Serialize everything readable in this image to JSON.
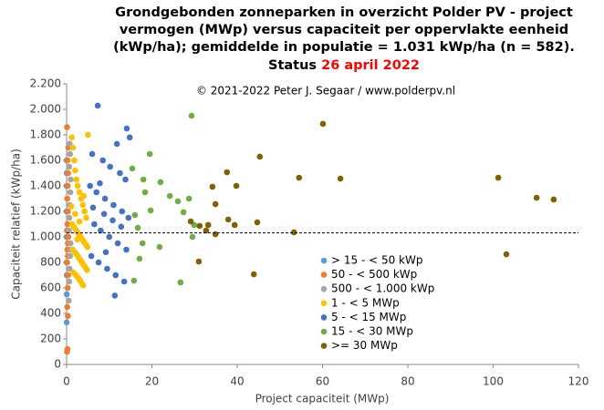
{
  "chart_data": {
    "type": "scatter",
    "title_lines": [
      "Grondgebonden zonneparken in overzicht Polder PV - project",
      "vermogen (MWp) versus capaciteit per oppervlakte eenheid",
      "(kWp/ha); gemiddelde in populatie = 1.031 kWp/ha (n = 582).",
      "Status"
    ],
    "title_date": "26 april 2022",
    "title_date_color": "#ff0000",
    "subtitle": "© 2021-2022 Peter J. Segaar / www.polderpv.nl",
    "xlabel": "Project capaciteit (MWp)",
    "ylabel": "Capaciteit relatief (kWp/ha)",
    "xlim": [
      0,
      120
    ],
    "ylim": [
      0,
      2200
    ],
    "xticks": [
      0,
      20,
      40,
      60,
      80,
      100,
      120
    ],
    "yticks": [
      0,
      200,
      400,
      600,
      800,
      {
        "value": 1000,
        "label": "1.000"
      },
      {
        "value": 1200,
        "label": "1.200"
      },
      {
        "value": 1400,
        "label": "1.400"
      },
      {
        "value": 1600,
        "label": "1.600"
      },
      {
        "value": 1800,
        "label": "1.800"
      },
      {
        "value": 2000,
        "label": "2.000"
      },
      {
        "value": 2200,
        "label": "2.200"
      }
    ],
    "mean_line": 1031,
    "legend": "lower right",
    "series": [
      {
        "name": "> 15 - < 50 kWp",
        "color": "#5b9bd5",
        "x": [
          0.02,
          0.03,
          0.03,
          0.04,
          0.02,
          0.03,
          0.04,
          0.03,
          0.02
        ],
        "values": [
          330,
          550,
          800,
          1000,
          1200,
          1500,
          1600,
          700,
          1400
        ]
      },
      {
        "name": "50 - < 500 kWp",
        "color": "#ed7d31",
        "x": [
          0.1,
          0.2,
          0.3,
          0.15,
          0.25,
          0.35,
          0.1,
          0.2,
          0.3,
          0.4,
          0.1,
          0.2,
          0.3,
          0.15,
          0.25,
          0.35,
          0.2,
          0.4,
          0.1,
          0.3
        ],
        "values": [
          100,
          120,
          380,
          450,
          600,
          700,
          800,
          900,
          950,
          1000,
          1050,
          1100,
          1200,
          1300,
          1400,
          1500,
          1600,
          1700,
          1860,
          850
        ]
      },
      {
        "name": "500 - < 1.000 kWp",
        "color": "#a5a5a5",
        "x": [
          0.5,
          0.6,
          0.7,
          0.8,
          0.9,
          0.55,
          0.65,
          0.75,
          0.85,
          0.95,
          0.6,
          0.8,
          0.7,
          0.9
        ],
        "values": [
          500,
          650,
          750,
          850,
          950,
          1050,
          1150,
          1250,
          1350,
          1450,
          1550,
          1650,
          1730,
          900
        ]
      },
      {
        "name": "1 - < 5 MWp",
        "color": "#ffc000",
        "x": [
          1.2,
          1.5,
          1.8,
          2.0,
          2.3,
          2.6,
          3.0,
          3.4,
          3.8,
          4.2,
          4.6,
          1.3,
          1.7,
          2.1,
          2.5,
          2.9,
          3.3,
          3.7,
          4.1,
          4.5,
          4.9,
          1.4,
          1.9,
          2.4,
          2.8,
          3.2,
          3.6,
          4.0,
          4.4,
          4.8,
          1.6,
          2.2,
          2.7,
          3.1,
          3.5,
          3.9,
          1.1,
          2.0,
          3.0,
          4.0,
          5.0,
          2.5
        ],
        "values": [
          1780,
          1700,
          1600,
          1520,
          1450,
          1400,
          1350,
          1300,
          1250,
          1200,
          1150,
          1100,
          1080,
          1060,
          1040,
          1020,
          1000,
          980,
          960,
          940,
          920,
          900,
          880,
          860,
          840,
          820,
          800,
          780,
          760,
          740,
          720,
          700,
          680,
          660,
          640,
          620,
          1240,
          1180,
          1120,
          1320,
          1800,
          980
        ]
      },
      {
        "name": "5 - < 15 MWp",
        "color": "#4472c4",
        "x": [
          7.3,
          14.1,
          11.8,
          6.0,
          8.5,
          10.2,
          12.5,
          13.8,
          5.5,
          7.0,
          9.0,
          11.0,
          13.0,
          14.5,
          6.5,
          8.0,
          10.0,
          12.0,
          14.0,
          5.8,
          7.5,
          9.5,
          11.5,
          13.5,
          6.2,
          8.8,
          10.8,
          12.8,
          11.3,
          9.2,
          14.8,
          7.8
        ],
        "values": [
          2029,
          1850,
          1729,
          1650,
          1600,
          1550,
          1500,
          1450,
          1400,
          1350,
          1300,
          1250,
          1200,
          1150,
          1100,
          1050,
          1000,
          950,
          900,
          850,
          800,
          750,
          700,
          650,
          1230,
          1180,
          1130,
          1080,
          540,
          880,
          1780,
          1420
        ]
      },
      {
        "name": "15 - < 30 MWp",
        "color": "#70ad47",
        "x": [
          29.3,
          19.5,
          15.4,
          18.0,
          22.0,
          24.2,
          28.7,
          26.1,
          18.4,
          16.0,
          16.7,
          17.8,
          21.8,
          29.5,
          26.7,
          17.1,
          15.8,
          27.4,
          19.7,
          29.9
        ],
        "values": [
          1950,
          1650,
          1536,
          1450,
          1429,
          1321,
          1300,
          1279,
          1350,
          1171,
          1071,
          950,
          921,
          1000,
          643,
          829,
          657,
          1193,
          1207,
          1093
        ]
      },
      {
        "name": ">= 30 MWp",
        "color": "#806000",
        "x": [
          60.1,
          45.3,
          37.6,
          39.8,
          34.2,
          54.5,
          64.2,
          101.2,
          110.2,
          114.2,
          34.9,
          29.1,
          37.9,
          39.4,
          44.7,
          31.2,
          32.7,
          34.9,
          53.3,
          31.0,
          103.1,
          43.9,
          33.2
        ],
        "values": [
          1886,
          1629,
          1507,
          1400,
          1393,
          1464,
          1457,
          1464,
          1307,
          1293,
          1257,
          1121,
          1136,
          1093,
          1114,
          1086,
          1050,
          1021,
          1036,
          807,
          864,
          707,
          1093
        ]
      }
    ]
  }
}
